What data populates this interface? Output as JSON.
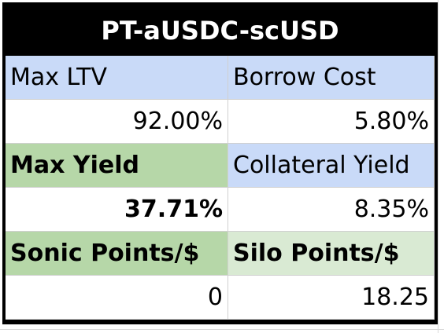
{
  "header": {
    "title": "PT-aUSDC-scUSD"
  },
  "table": {
    "rows": [
      [
        "Max LTV",
        "Borrow Cost"
      ],
      [
        "92.00%",
        "5.80%"
      ],
      [
        "Max Yield",
        "Collateral Yield"
      ],
      [
        "37.71%",
        "8.35%"
      ],
      [
        "Sonic Points/$",
        "Silo Points/$"
      ],
      [
        "0",
        "18.25"
      ]
    ]
  }
}
